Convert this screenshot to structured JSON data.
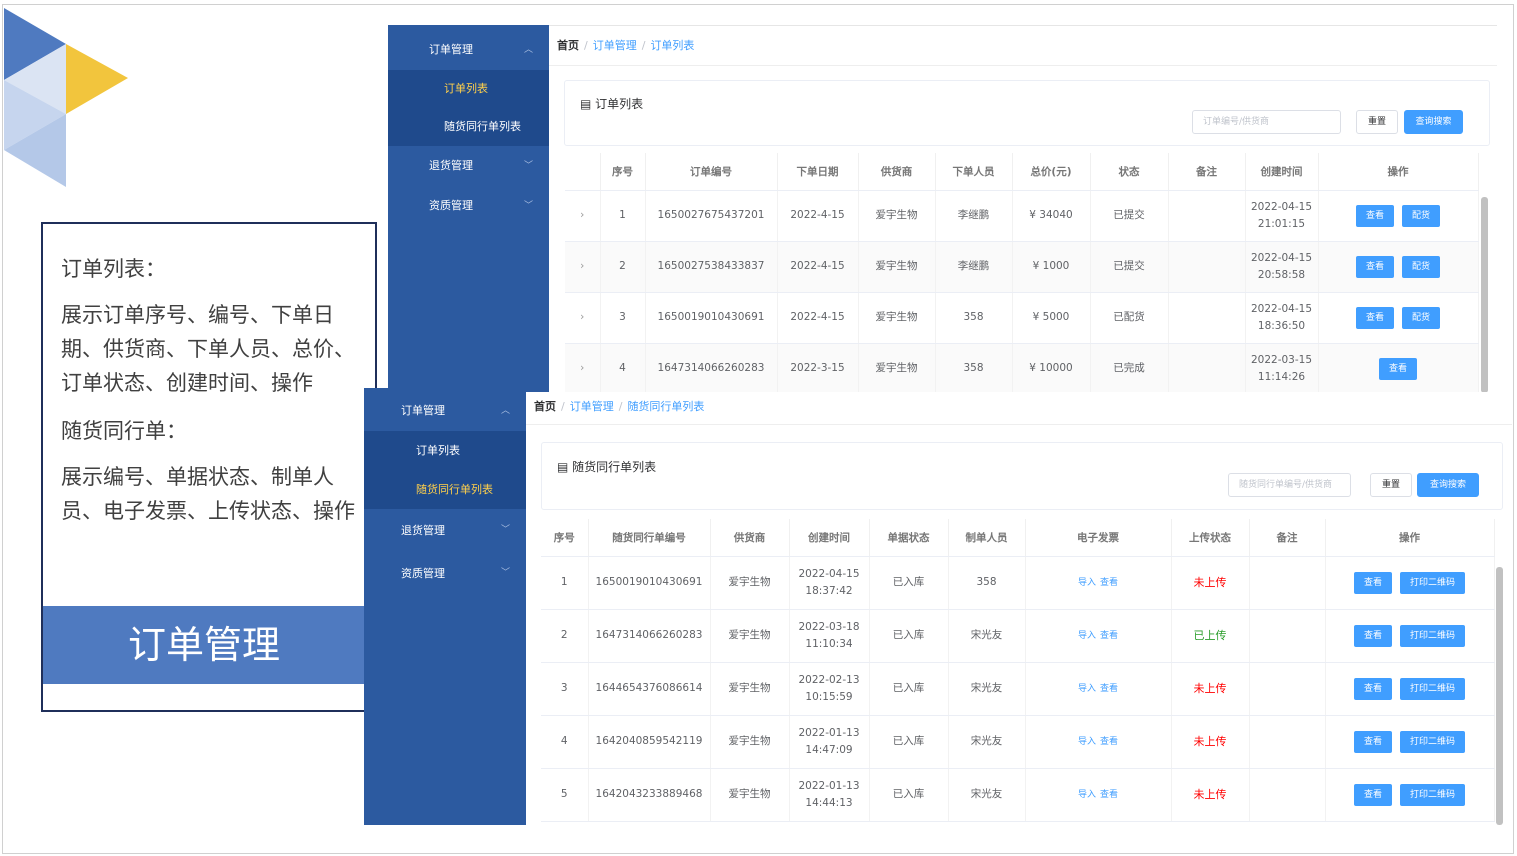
{
  "slide": {
    "heading1": "订单列表：",
    "desc1": "展示订单序号、编号、下单日期、供货商、下单人员、总价、订单状态、创建时间、操作",
    "heading2": "随货同行单：",
    "desc2": "展示编号、单据状态、制单人员、电子发票、上传状态、操作",
    "banner": "订单管理",
    "colors": {
      "banner": "#4f7ac0",
      "sidebar": "#2c5aa0",
      "primary": "#409eff"
    }
  },
  "sidebar": {
    "group_order": "订单管理",
    "item_order_list": "订单列表",
    "item_delivery_list": "随货同行单列表",
    "group_return": "退货管理",
    "group_qualification": "资质管理"
  },
  "order_page": {
    "breadcrumb": [
      "首页",
      "订单管理",
      "订单列表"
    ],
    "title": "订单列表",
    "search_placeholder": "订单编号/供货商",
    "reset": "重置",
    "search": "查询搜索",
    "columns": [
      "序号",
      "订单编号",
      "下单日期",
      "供货商",
      "下单人员",
      "总价(元)",
      "状态",
      "备注",
      "创建时间",
      "操作"
    ],
    "rows": [
      {
        "no": "1",
        "id": "1650027675437201",
        "date": "2022-4-15",
        "supplier": "爱宇生物",
        "person": "李继鹏",
        "total": "¥ 34040",
        "status": "已提交",
        "note": "",
        "created_date": "2022-04-15",
        "created_time": "21:01:15",
        "actions": [
          "查看",
          "配货"
        ]
      },
      {
        "no": "2",
        "id": "1650027538433837",
        "date": "2022-4-15",
        "supplier": "爱宇生物",
        "person": "李继鹏",
        "total": "¥ 1000",
        "status": "已提交",
        "note": "",
        "created_date": "2022-04-15",
        "created_time": "20:58:58",
        "actions": [
          "查看",
          "配货"
        ]
      },
      {
        "no": "3",
        "id": "1650019010430691",
        "date": "2022-4-15",
        "supplier": "爱宇生物",
        "person": "358",
        "total": "¥ 5000",
        "status": "已配货",
        "note": "",
        "created_date": "2022-04-15",
        "created_time": "18:36:50",
        "actions": [
          "查看",
          "配货"
        ]
      },
      {
        "no": "4",
        "id": "1647314066260283",
        "date": "2022-3-15",
        "supplier": "爱宇生物",
        "person": "358",
        "total": "¥ 10000",
        "status": "已完成",
        "note": "",
        "created_date": "2022-03-15",
        "created_time": "11:14:26",
        "actions": [
          "查看"
        ]
      }
    ]
  },
  "delivery_page": {
    "breadcrumb": [
      "首页",
      "订单管理",
      "随货同行单列表"
    ],
    "title": "随货同行单列表",
    "search_placeholder": "随货同行单编号/供货商",
    "reset": "重置",
    "search": "查询搜索",
    "columns": [
      "序号",
      "随货同行单编号",
      "供货商",
      "创建时间",
      "单据状态",
      "制单人员",
      "电子发票",
      "上传状态",
      "备注",
      "操作"
    ],
    "invoice_links": [
      "导入",
      "查看"
    ],
    "rows": [
      {
        "no": "1",
        "id": "1650019010430691",
        "supplier": "爱宇生物",
        "created_date": "2022-04-15",
        "created_time": "18:37:42",
        "status": "已入库",
        "maker": "358",
        "upload": "未上传",
        "uploaded": false,
        "actions": [
          "查看",
          "打印二维码"
        ]
      },
      {
        "no": "2",
        "id": "1647314066260283",
        "supplier": "爱宇生物",
        "created_date": "2022-03-18",
        "created_time": "11:10:34",
        "status": "已入库",
        "maker": "宋光友",
        "upload": "已上传",
        "uploaded": true,
        "actions": [
          "查看",
          "打印二维码"
        ]
      },
      {
        "no": "3",
        "id": "1644654376086614",
        "supplier": "爱宇生物",
        "created_date": "2022-02-13",
        "created_time": "10:15:59",
        "status": "已入库",
        "maker": "宋光友",
        "upload": "未上传",
        "uploaded": false,
        "actions": [
          "查看",
          "打印二维码"
        ]
      },
      {
        "no": "4",
        "id": "1642040859542119",
        "supplier": "爱宇生物",
        "created_date": "2022-01-13",
        "created_time": "14:47:09",
        "status": "已入库",
        "maker": "宋光友",
        "upload": "未上传",
        "uploaded": false,
        "actions": [
          "查看",
          "打印二维码"
        ]
      },
      {
        "no": "5",
        "id": "1642043233889468",
        "supplier": "爱宇生物",
        "created_date": "2022-01-13",
        "created_time": "14:44:13",
        "status": "已入库",
        "maker": "宋光友",
        "upload": "未上传",
        "uploaded": false,
        "actions": [
          "查看",
          "打印二维码"
        ]
      }
    ]
  }
}
